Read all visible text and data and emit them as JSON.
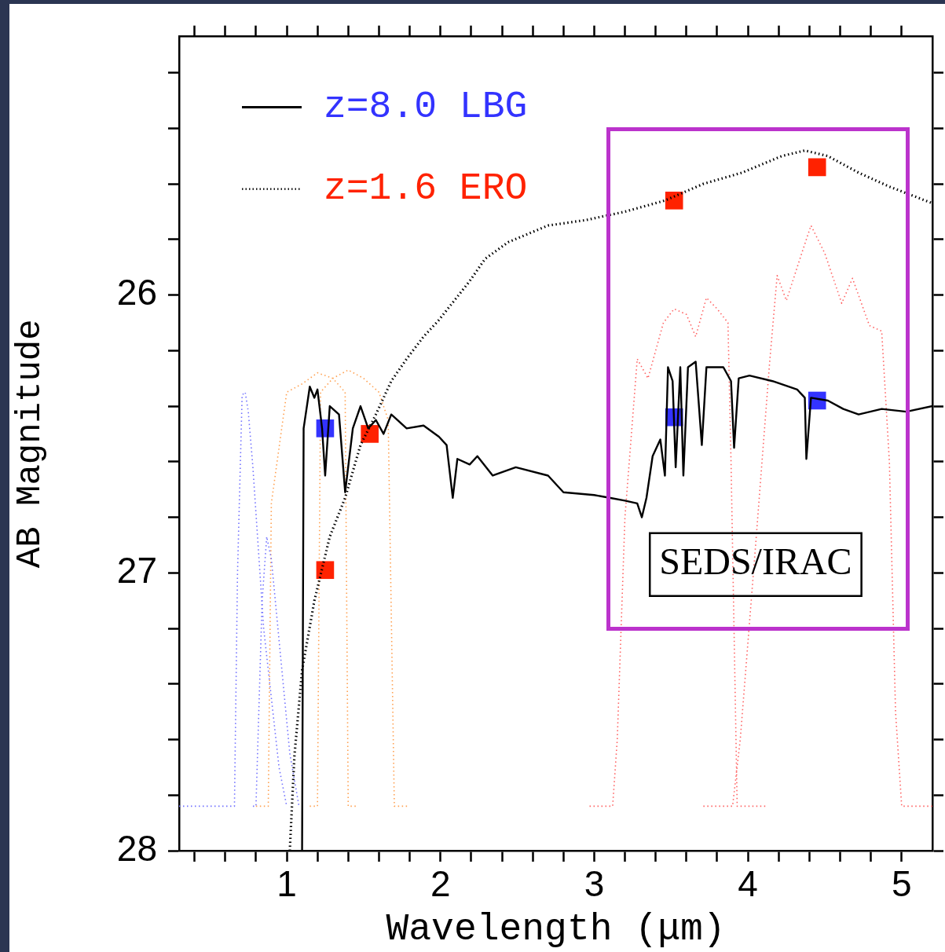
{
  "chart_data": {
    "type": "line",
    "xlabel": "Wavelength (μm)",
    "ylabel": "AB Magnitude",
    "xlim": [
      0.3,
      5.2
    ],
    "ylim": [
      28,
      25.07
    ],
    "xticks": [
      {
        "value": 0.4,
        "label": null
      },
      {
        "value": 0.6,
        "label": null
      },
      {
        "value": 0.8,
        "label": null
      },
      1,
      {
        "value": 1.2,
        "label": null
      },
      {
        "value": 1.4,
        "label": null
      },
      {
        "value": 1.6,
        "label": null
      },
      {
        "value": 1.8,
        "label": null
      },
      2,
      {
        "value": 2.2,
        "label": null
      },
      {
        "value": 2.4,
        "label": null
      },
      {
        "value": 2.6,
        "label": null
      },
      {
        "value": 2.8,
        "label": null
      },
      3,
      {
        "value": 3.2,
        "label": null
      },
      {
        "value": 3.4,
        "label": null
      },
      {
        "value": 3.6,
        "label": null
      },
      {
        "value": 3.8,
        "label": null
      },
      4,
      {
        "value": 4.2,
        "label": null
      },
      {
        "value": 4.4,
        "label": null
      },
      {
        "value": 4.6,
        "label": null
      },
      {
        "value": 4.8,
        "label": null
      },
      5
    ],
    "yticks": [
      {
        "value": 25.2,
        "label": null
      },
      {
        "value": 25.4,
        "label": null
      },
      {
        "value": 25.6,
        "label": null
      },
      {
        "value": 25.8,
        "label": null
      },
      26,
      {
        "value": 26.2,
        "label": null
      },
      {
        "value": 26.4,
        "label": null
      },
      {
        "value": 26.6,
        "label": null
      },
      {
        "value": 26.8,
        "label": null
      },
      27,
      {
        "value": 27.2,
        "label": null
      },
      {
        "value": 27.4,
        "label": null
      },
      {
        "value": 27.6,
        "label": null
      },
      {
        "value": 27.8,
        "label": null
      },
      28
    ],
    "grid": false,
    "legend": "top left",
    "annotations": [
      {
        "text": "SEDS/IRAC",
        "x": 4.05,
        "y": 26.97
      }
    ],
    "series": [
      {
        "name": "z=8.0 LBG",
        "color": "#000000",
        "line_style": "solid",
        "marker": "none",
        "x": [
          1.1,
          1.11,
          1.15,
          1.18,
          1.2,
          1.23,
          1.25,
          1.28,
          1.34,
          1.38,
          1.43,
          1.48,
          1.53,
          1.58,
          1.63,
          1.68,
          1.78,
          1.89,
          1.99,
          2.04,
          2.08,
          2.11,
          2.19,
          2.24,
          2.34,
          2.49,
          2.7,
          2.8,
          3.0,
          3.1,
          3.2,
          3.28,
          3.31,
          3.34,
          3.38,
          3.43,
          3.46,
          3.48,
          3.51,
          3.53,
          3.56,
          3.58,
          3.61,
          3.66,
          3.7,
          3.73,
          3.84,
          3.89,
          3.91,
          3.94,
          4.01,
          4.16,
          4.32,
          4.37,
          4.38,
          4.41,
          4.52,
          4.62,
          4.72,
          4.87,
          5.03,
          5.2
        ],
        "values": [
          28.0,
          26.48,
          26.33,
          26.37,
          26.34,
          26.48,
          26.65,
          26.4,
          26.43,
          26.71,
          26.48,
          26.4,
          26.48,
          26.45,
          26.5,
          26.43,
          26.48,
          26.47,
          26.51,
          26.54,
          26.73,
          26.59,
          26.61,
          26.58,
          26.65,
          26.62,
          26.65,
          26.71,
          26.72,
          26.73,
          26.74,
          26.75,
          26.8,
          26.73,
          26.58,
          26.52,
          26.65,
          26.26,
          26.31,
          26.62,
          26.26,
          26.65,
          26.26,
          26.24,
          26.54,
          26.26,
          26.26,
          26.31,
          26.55,
          26.3,
          26.29,
          26.31,
          26.34,
          26.37,
          26.59,
          26.37,
          26.38,
          26.41,
          26.43,
          26.41,
          26.42,
          26.4
        ]
      },
      {
        "name": "z=1.6 ERO",
        "color": "#000000",
        "line_style": "dotted",
        "marker": "none",
        "x": [
          1.02,
          1.05,
          1.1,
          1.18,
          1.28,
          1.38,
          1.48,
          1.58,
          1.68,
          1.78,
          1.89,
          1.99,
          2.09,
          2.19,
          2.29,
          2.44,
          2.7,
          2.95,
          3.2,
          3.46,
          3.71,
          3.96,
          4.22,
          4.37,
          4.52,
          4.72,
          4.92,
          5.2
        ],
        "values": [
          28.0,
          27.66,
          27.35,
          27.1,
          26.87,
          26.73,
          26.54,
          26.43,
          26.31,
          26.23,
          26.15,
          26.09,
          26.02,
          25.95,
          25.87,
          25.81,
          25.75,
          25.73,
          25.7,
          25.66,
          25.6,
          25.56,
          25.5,
          25.48,
          25.5,
          25.56,
          25.61,
          25.67
        ]
      },
      {
        "type": "scatter",
        "color": "#3333ff",
        "marker": "square",
        "x": [
          1.25,
          3.52,
          4.45
        ],
        "values": [
          26.48,
          26.44,
          26.38
        ]
      },
      {
        "type": "scatter",
        "color": "#ff2200",
        "marker": "square",
        "x": [
          1.25,
          1.54,
          3.52,
          4.45
        ],
        "values": [
          26.99,
          26.5,
          25.66,
          25.54
        ]
      },
      {
        "color": "#7070ff",
        "line_style": "dotted",
        "marker": "none",
        "x": [
          0.3,
          0.66,
          0.68,
          0.71,
          0.73,
          0.75,
          0.78,
          0.85,
          0.95,
          1.0
        ],
        "values": [
          27.84,
          27.84,
          27.0,
          26.36,
          26.35,
          26.42,
          26.62,
          27.2,
          27.7,
          27.84
        ]
      },
      {
        "color": "#7070ff",
        "line_style": "dotted",
        "marker": "none",
        "x": [
          0.78,
          0.8,
          0.84,
          0.87,
          0.9,
          0.96,
          1.02,
          1.08
        ],
        "values": [
          27.84,
          27.84,
          27.1,
          26.87,
          26.95,
          27.3,
          27.65,
          27.84
        ]
      },
      {
        "color": "#ffa050",
        "line_style": "dotted",
        "marker": "none",
        "x": [
          0.8,
          0.88,
          0.9,
          0.95,
          1.0,
          1.1,
          1.2,
          1.3,
          1.38,
          1.4,
          1.45
        ],
        "values": [
          27.84,
          27.84,
          26.75,
          26.55,
          26.35,
          26.32,
          26.28,
          26.3,
          26.35,
          27.84,
          27.84
        ]
      },
      {
        "color": "#ffa050",
        "line_style": "dotted",
        "marker": "none",
        "x": [
          1.15,
          1.2,
          1.22,
          1.3,
          1.4,
          1.5,
          1.6,
          1.66,
          1.7,
          1.8
        ],
        "values": [
          27.84,
          27.84,
          26.35,
          26.3,
          26.27,
          26.3,
          26.35,
          26.45,
          27.84,
          27.84
        ]
      },
      {
        "color": "#ff6060",
        "line_style": "dotted",
        "marker": "none",
        "x": [
          2.97,
          3.12,
          3.15,
          3.2,
          3.28,
          3.35,
          3.45,
          3.52,
          3.6,
          3.66,
          3.73,
          3.8,
          3.87,
          3.89,
          3.93,
          4.13
        ],
        "values": [
          27.84,
          27.84,
          27.6,
          26.8,
          26.23,
          26.3,
          26.1,
          26.05,
          26.07,
          26.15,
          26.01,
          26.05,
          26.1,
          26.6,
          27.84,
          27.84
        ]
      },
      {
        "color": "#ff6060",
        "line_style": "dotted",
        "marker": "none",
        "x": [
          3.71,
          3.9,
          3.95,
          4.05,
          4.14,
          4.19,
          4.25,
          4.35,
          4.41,
          4.5,
          4.61,
          4.68,
          4.79,
          4.87,
          4.92,
          4.96,
          5.0,
          5.2
        ],
        "values": [
          27.84,
          27.84,
          27.6,
          26.9,
          26.25,
          25.93,
          26.02,
          25.85,
          25.75,
          25.85,
          26.03,
          25.94,
          26.11,
          26.13,
          26.6,
          27.5,
          27.84,
          27.84
        ]
      }
    ]
  }
}
